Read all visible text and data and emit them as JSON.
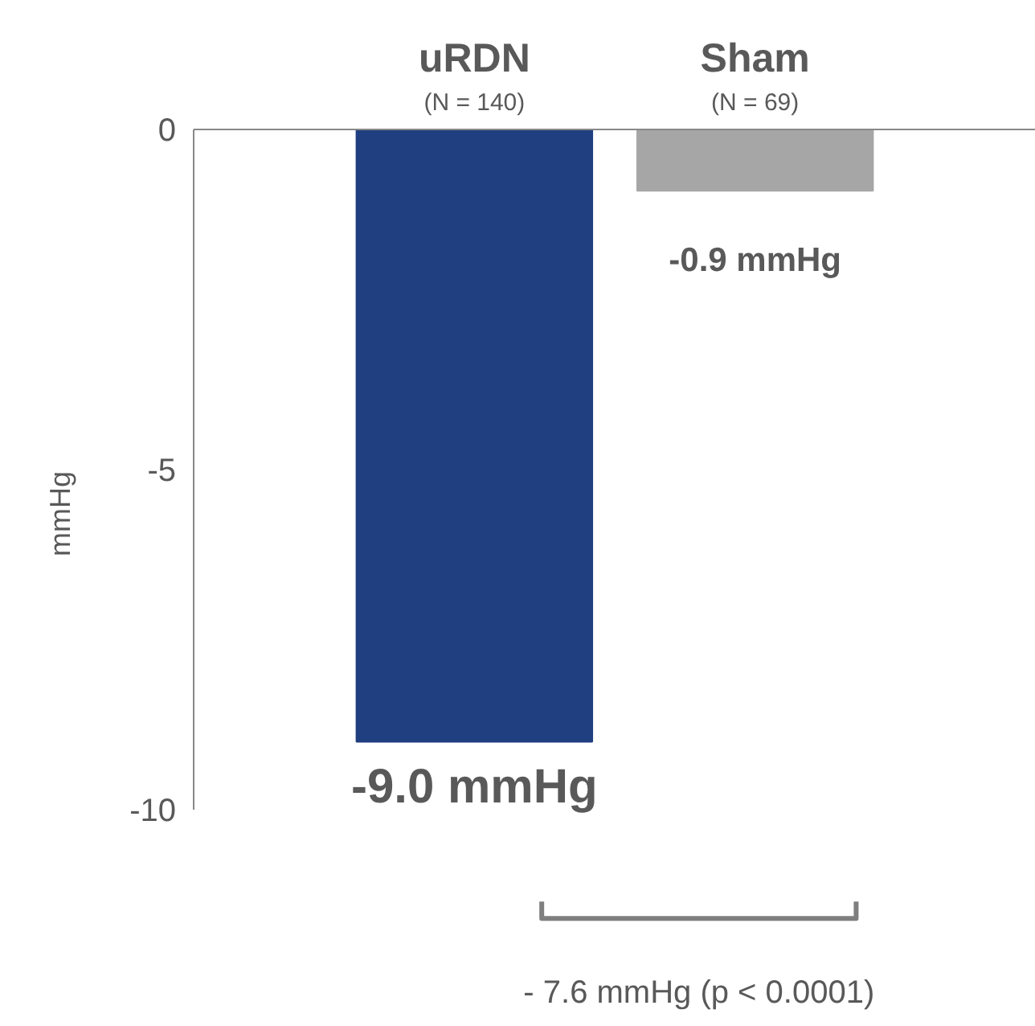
{
  "chart_data": {
    "type": "bar",
    "ylabel": "mmHg",
    "categories": [
      "uRDN",
      "Sham"
    ],
    "series": [
      {
        "colors": [
          "#1f3f80",
          "#a6a6a6"
        ],
        "values": [
          -9.0,
          -0.9
        ]
      }
    ],
    "value_labels": [
      "-9.0 mmHg",
      "-0.9 mmHg"
    ],
    "ylim": [
      -10,
      0
    ],
    "yticks": [
      0,
      -5,
      -10
    ],
    "grid": false,
    "annotations": [
      "(N = 140)",
      "(N = 69)",
      "- 7.6 mmHg (p < 0.0001)"
    ]
  }
}
